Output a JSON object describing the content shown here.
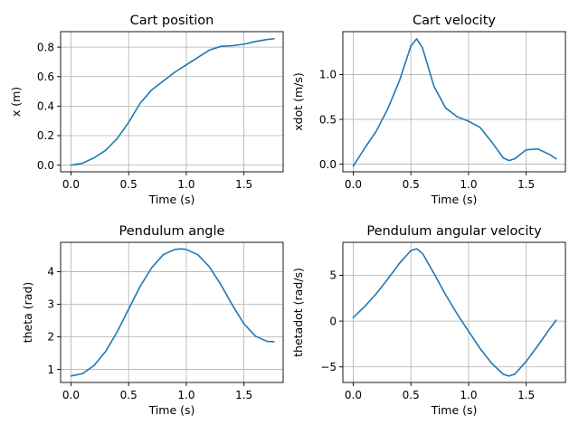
{
  "chart_data": [
    {
      "type": "line",
      "title": "Cart position",
      "xlabel": "Time (s)",
      "ylabel": "x (m)",
      "xlim": [
        -0.09,
        1.84
      ],
      "ylim": [
        -0.045,
        0.905
      ],
      "xticks": [
        0.0,
        0.5,
        1.0,
        1.5
      ],
      "xtick_labels": [
        "0.0",
        "0.5",
        "1.0",
        "1.5"
      ],
      "yticks": [
        0.0,
        0.2,
        0.4,
        0.6,
        0.8
      ],
      "ytick_labels": [
        "0.0",
        "0.2",
        "0.4",
        "0.6",
        "0.8"
      ],
      "grid": true,
      "color": "#1f77b4",
      "x": [
        0.0,
        0.1,
        0.2,
        0.3,
        0.4,
        0.5,
        0.6,
        0.7,
        0.8,
        0.9,
        1.0,
        1.1,
        1.2,
        1.3,
        1.4,
        1.5,
        1.6,
        1.7,
        1.76
      ],
      "y": [
        0.0,
        0.013,
        0.05,
        0.1,
        0.18,
        0.29,
        0.42,
        0.51,
        0.57,
        0.63,
        0.68,
        0.73,
        0.78,
        0.805,
        0.81,
        0.82,
        0.838,
        0.852,
        0.857
      ]
    },
    {
      "type": "line",
      "title": "Cart velocity",
      "xlabel": "Time (s)",
      "ylabel": "xdot (m/s)",
      "xlim": [
        -0.09,
        1.84
      ],
      "ylim": [
        -0.085,
        1.48
      ],
      "xticks": [
        0.0,
        0.5,
        1.0,
        1.5
      ],
      "xtick_labels": [
        "0.0",
        "0.5",
        "1.0",
        "1.5"
      ],
      "yticks": [
        0.0,
        0.5,
        1.0
      ],
      "ytick_labels": [
        "0.0",
        "0.5",
        "1.0"
      ],
      "grid": true,
      "color": "#1f77b4",
      "x": [
        0.0,
        0.1,
        0.2,
        0.3,
        0.4,
        0.5,
        0.55,
        0.6,
        0.7,
        0.8,
        0.9,
        1.0,
        1.1,
        1.2,
        1.3,
        1.35,
        1.4,
        1.5,
        1.6,
        1.7,
        1.76
      ],
      "y": [
        -0.02,
        0.18,
        0.37,
        0.62,
        0.93,
        1.32,
        1.4,
        1.3,
        0.87,
        0.63,
        0.53,
        0.48,
        0.41,
        0.25,
        0.07,
        0.04,
        0.06,
        0.16,
        0.17,
        0.11,
        0.06
      ]
    },
    {
      "type": "line",
      "title": "Pendulum angle",
      "xlabel": "Time (s)",
      "ylabel": "theta (rad)",
      "xlim": [
        -0.09,
        1.84
      ],
      "ylim": [
        0.6,
        4.9
      ],
      "xticks": [
        0.0,
        0.5,
        1.0,
        1.5
      ],
      "xtick_labels": [
        "0.0",
        "0.5",
        "1.0",
        "1.5"
      ],
      "yticks": [
        1,
        2,
        3,
        4
      ],
      "ytick_labels": [
        "1",
        "2",
        "3",
        "4"
      ],
      "grid": true,
      "color": "#1f77b4",
      "x": [
        0.0,
        0.1,
        0.2,
        0.3,
        0.4,
        0.5,
        0.6,
        0.7,
        0.8,
        0.9,
        0.95,
        1.0,
        1.1,
        1.2,
        1.3,
        1.4,
        1.5,
        1.6,
        1.7,
        1.76
      ],
      "y": [
        0.8,
        0.87,
        1.12,
        1.55,
        2.15,
        2.85,
        3.55,
        4.12,
        4.52,
        4.68,
        4.7,
        4.68,
        4.52,
        4.15,
        3.6,
        2.97,
        2.4,
        2.02,
        1.86,
        1.85
      ]
    },
    {
      "type": "line",
      "title": "Pendulum angular velocity",
      "xlabel": "Time (s)",
      "ylabel": "thetadot (rad/s)",
      "xlim": [
        -0.09,
        1.84
      ],
      "ylim": [
        -6.7,
        8.6
      ],
      "xticks": [
        0.0,
        0.5,
        1.0,
        1.5
      ],
      "xtick_labels": [
        "0.0",
        "0.5",
        "1.0",
        "1.5"
      ],
      "yticks": [
        -5,
        0,
        5
      ],
      "ytick_labels": [
        "−5",
        "0",
        "5"
      ],
      "grid": true,
      "color": "#1f77b4",
      "x": [
        0.0,
        0.1,
        0.2,
        0.3,
        0.4,
        0.5,
        0.55,
        0.6,
        0.7,
        0.8,
        0.9,
        1.0,
        1.1,
        1.2,
        1.3,
        1.35,
        1.4,
        1.5,
        1.6,
        1.7,
        1.76
      ],
      "y": [
        0.4,
        1.6,
        3.0,
        4.6,
        6.3,
        7.7,
        7.9,
        7.4,
        5.2,
        2.9,
        0.8,
        -1.1,
        -3.0,
        -4.6,
        -5.8,
        -6.0,
        -5.8,
        -4.4,
        -2.7,
        -0.9,
        0.1
      ]
    }
  ]
}
